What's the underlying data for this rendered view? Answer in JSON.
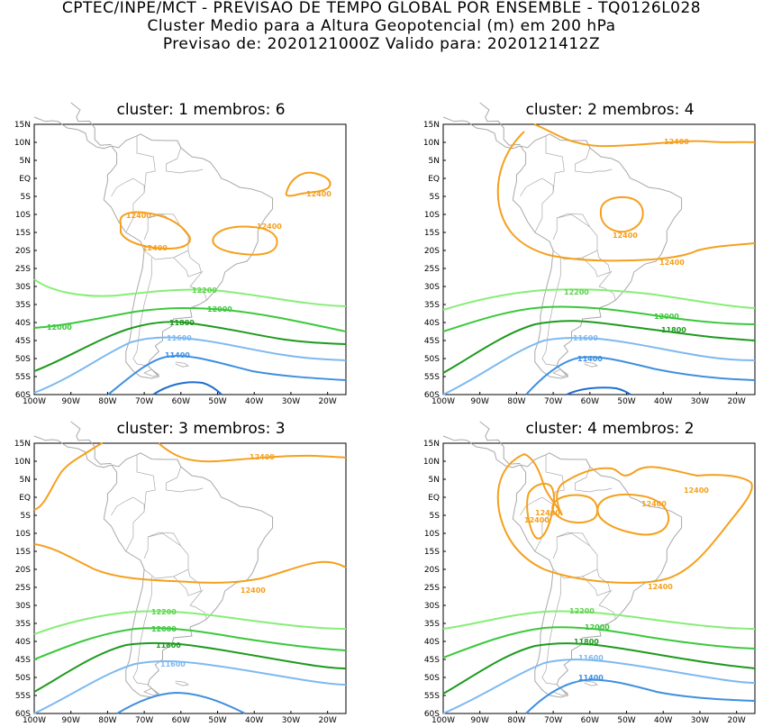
{
  "header": {
    "line1": "CPTEC/INPE/MCT - PREVISAO DE TEMPO GLOBAL POR ENSEMBLE - TQ0126L028",
    "line2": "Cluster Medio para a Altura Geopotencial (m) em 200 hPa",
    "line3": "Previsao de: 2020121000Z    Valido para: 2020121412Z"
  },
  "axes": {
    "lat_labels": [
      "15N",
      "10N",
      "5N",
      "EQ",
      "5S",
      "10S",
      "15S",
      "20S",
      "25S",
      "30S",
      "35S",
      "40S",
      "45S",
      "50S",
      "55S",
      "60S"
    ],
    "lon_labels": [
      "100W",
      "90W",
      "80W",
      "70W",
      "60W",
      "50W",
      "40W",
      "30W",
      "20W"
    ]
  },
  "colors": {
    "c12400": "#f5a01e",
    "c12200": "#86ee76",
    "c12000": "#3bc83b",
    "c11800": "#1e9a1e",
    "c11600": "#7eb9f0",
    "c11400": "#3d8fe0",
    "c11200": "#1f6fd0",
    "coast": "#a8a8a8"
  },
  "panels": [
    {
      "title": "cluster: 1   membros: 6",
      "labels": {
        "l12400a": "12400",
        "l12400b": "12400",
        "l12400c": "12400",
        "l12400d": "12400",
        "l12200": "12200",
        "l12000a": "12000",
        "l12000b": "12000",
        "l11800": "11800",
        "l11600": "11600",
        "l11400": "11400"
      }
    },
    {
      "title": "cluster: 2   membros: 4",
      "labels": {
        "l12400a": "12400",
        "l12400b": "12400",
        "l12400c": "12400",
        "l12200": "12200",
        "l12000": "12000",
        "l11800": "11800",
        "l11600": "11600",
        "l11400": "11400"
      }
    },
    {
      "title": "cluster: 3   membros: 3",
      "labels": {
        "l12400a": "12400",
        "l12400b": "12400",
        "l12200": "12200",
        "l12000": "12000",
        "l11800": "11800",
        "l11600": "11600"
      }
    },
    {
      "title": "cluster: 4   membros: 2",
      "labels": {
        "l12400a": "12400",
        "l12400b": "12400",
        "l12400c": "12400",
        "l12400d": "12400",
        "l12400e": "12400",
        "l12200": "12200",
        "l12000": "12000",
        "l11800": "11800",
        "l11600": "11600",
        "l11400": "11400"
      }
    }
  ]
}
